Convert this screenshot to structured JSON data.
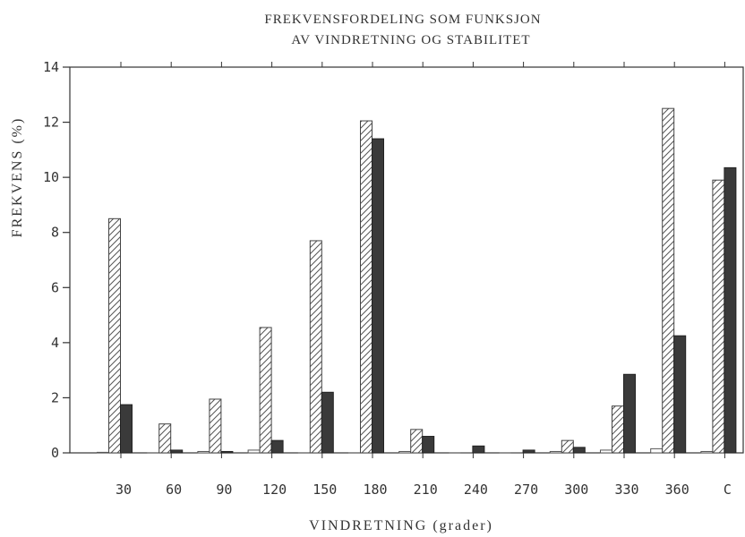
{
  "chart_data": {
    "type": "bar",
    "title_lines": [
      "FREKVENSFORDELING SOM FUNKSJON",
      "AV VINDRETNING OG STABILITET"
    ],
    "xlabel": "VINDRETNING (grader)",
    "ylabel": "FREKVENS (%)",
    "ylim": [
      0,
      14
    ],
    "yticks": [
      0,
      2,
      4,
      6,
      8,
      10,
      12,
      14
    ],
    "grid": false,
    "categories": [
      "30",
      "60",
      "90",
      "120",
      "150",
      "180",
      "210",
      "240",
      "270",
      "300",
      "330",
      "360",
      "C"
    ],
    "series": [
      {
        "pattern": "open",
        "color": "#ffffff",
        "values": [
          0.02,
          0.0,
          0.05,
          0.1,
          0.0,
          0.0,
          0.05,
          0.0,
          0.0,
          0.05,
          0.1,
          0.15,
          0.05
        ]
      },
      {
        "pattern": "hatched",
        "color": "#ffffff",
        "values": [
          8.5,
          1.05,
          1.95,
          4.55,
          7.7,
          12.05,
          0.85,
          0.0,
          0.0,
          0.45,
          1.7,
          12.5,
          9.9
        ]
      },
      {
        "pattern": "dark",
        "color": "#3a3a3a",
        "values": [
          1.75,
          0.1,
          0.05,
          0.45,
          2.2,
          11.4,
          0.6,
          0.25,
          0.1,
          0.2,
          2.85,
          4.25,
          10.35
        ]
      }
    ]
  }
}
